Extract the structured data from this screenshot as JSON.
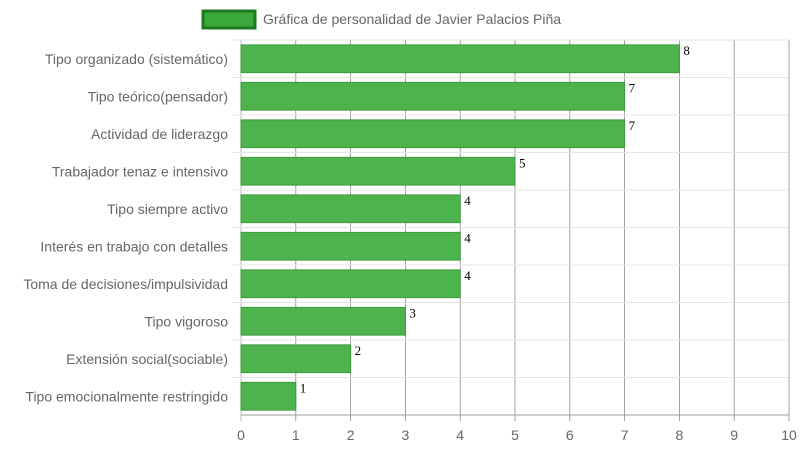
{
  "chart_data": {
    "type": "bar",
    "orientation": "horizontal",
    "categories": [
      "Tipo organizado (sistemático)",
      "Tipo teórico(pensador)",
      "Actividad de liderazgo",
      "Trabajador tenaz e intensivo",
      "Tipo siempre activo",
      "Interés en trabajo con detalles",
      "Toma de decisiones/impulsividad",
      "Tipo vigoroso",
      "Extensión social(sociable)",
      "Tipo emocionalmente restringido"
    ],
    "series": [
      {
        "name": "Gráfica de personalidad de Javier Palacios Piña",
        "values": [
          8,
          7,
          7,
          5,
          4,
          4,
          4,
          3,
          2,
          1
        ]
      }
    ],
    "xlim": [
      0,
      10
    ],
    "xticks": [
      "0",
      "1",
      "2",
      "3",
      "4",
      "5",
      "6",
      "7",
      "8",
      "9",
      "10"
    ],
    "grid": true,
    "legend": "top-center",
    "data_labels": true,
    "colors": {
      "bar": "#4db34d",
      "bar_border": "#3d9a3d",
      "legend_box": "#3aa83a",
      "legend_border": "#1e7a1e"
    }
  }
}
